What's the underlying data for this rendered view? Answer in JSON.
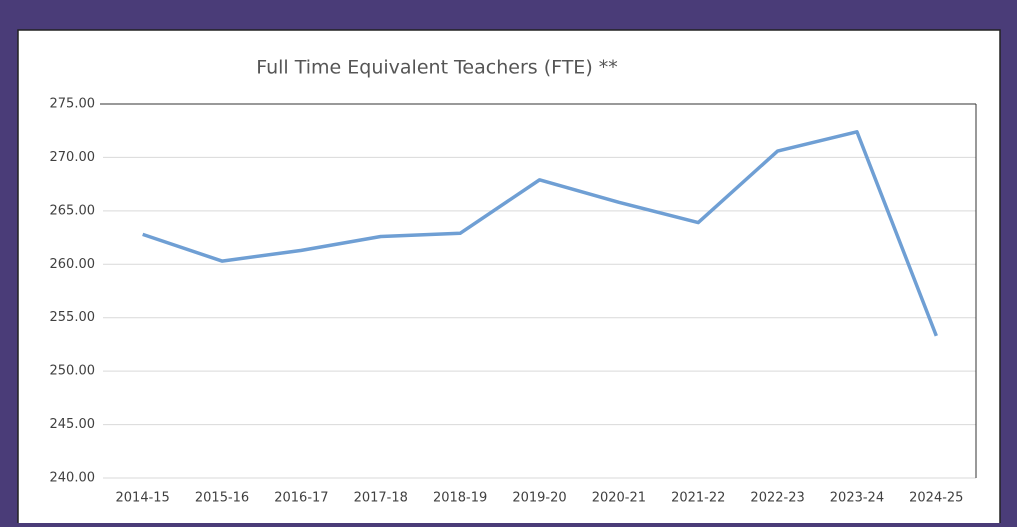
{
  "chart_data": {
    "type": "line",
    "title": "Full Time Equivalent Teachers (FTE) **",
    "categories": [
      "2014-15",
      "2015-16",
      "2016-17",
      "2017-18",
      "2018-19",
      "2019-20",
      "2020-21",
      "2021-22",
      "2022-23",
      "2023-24",
      "2024-25"
    ],
    "series": [
      {
        "name": "FTE",
        "color": "#6f9fd4",
        "values": [
          262.8,
          260.3,
          261.3,
          262.6,
          262.9,
          267.9,
          265.8,
          263.9,
          270.6,
          272.4,
          253.3
        ]
      }
    ],
    "ylim": [
      240,
      275
    ],
    "yticks": [
      {
        "value": 240,
        "label": "240.00"
      },
      {
        "value": 245,
        "label": "245.00"
      },
      {
        "value": 250,
        "label": "250.00"
      },
      {
        "value": 255,
        "label": "255.00"
      },
      {
        "value": 260,
        "label": "260.00"
      },
      {
        "value": 265,
        "label": "265.00"
      },
      {
        "value": 270,
        "label": "270.00"
      },
      {
        "value": 275,
        "label": "275.00"
      }
    ],
    "grid": true
  }
}
